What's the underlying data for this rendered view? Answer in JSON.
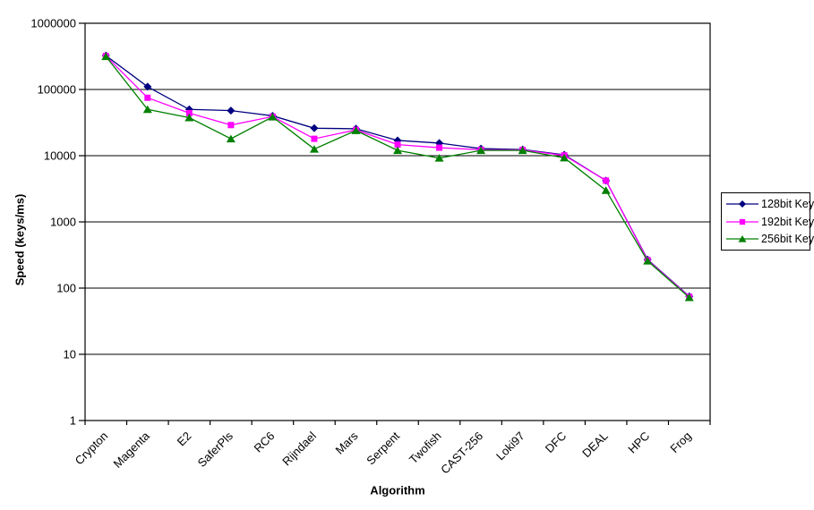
{
  "chart_data": {
    "type": "line",
    "title": "",
    "xlabel": "Algorithm",
    "ylabel": "Speed (keys/ms)",
    "y_scale": "log",
    "ylim": [
      1,
      1000000
    ],
    "y_ticks": [
      {
        "value": 1,
        "label": "1"
      },
      {
        "value": 10,
        "label": "10"
      },
      {
        "value": 100,
        "label": "100"
      },
      {
        "value": 1000,
        "label": "1000"
      },
      {
        "value": 10000,
        "label": "10000"
      },
      {
        "value": 100000,
        "label": "100000"
      },
      {
        "value": 1000000,
        "label": "1000000"
      }
    ],
    "categories": [
      "Crypton",
      "Magenta",
      "E2",
      "SaferPls",
      "RC6",
      "Rijndael",
      "Mars",
      "Serpent",
      "Twofish",
      "CAST-256",
      "Loki97",
      "DFC",
      "DEAL",
      "HPC",
      "Frog"
    ],
    "series": [
      {
        "name": "128bit Key",
        "marker": "diamond",
        "color": "#000080",
        "values": [
          325000,
          110000,
          50000,
          48000,
          40000,
          26000,
          25500,
          17000,
          15500,
          12800,
          12400,
          10300,
          4200,
          270,
          75
        ]
      },
      {
        "name": "192bit Key",
        "marker": "square",
        "color": "#FF00FF",
        "values": [
          320000,
          75000,
          44000,
          29000,
          39000,
          18000,
          24500,
          14700,
          13200,
          12300,
          12200,
          10100,
          4200,
          265,
          74
        ]
      },
      {
        "name": "256bit Key",
        "marker": "triangle",
        "color": "#008000",
        "values": [
          315000,
          50000,
          37500,
          18000,
          38500,
          12600,
          24000,
          12000,
          9200,
          12000,
          12000,
          9300,
          3000,
          257,
          72
        ]
      }
    ],
    "legend_position": "right",
    "grid": "horizontal",
    "axis_color": "#000000",
    "background": "#FFFFFF"
  }
}
